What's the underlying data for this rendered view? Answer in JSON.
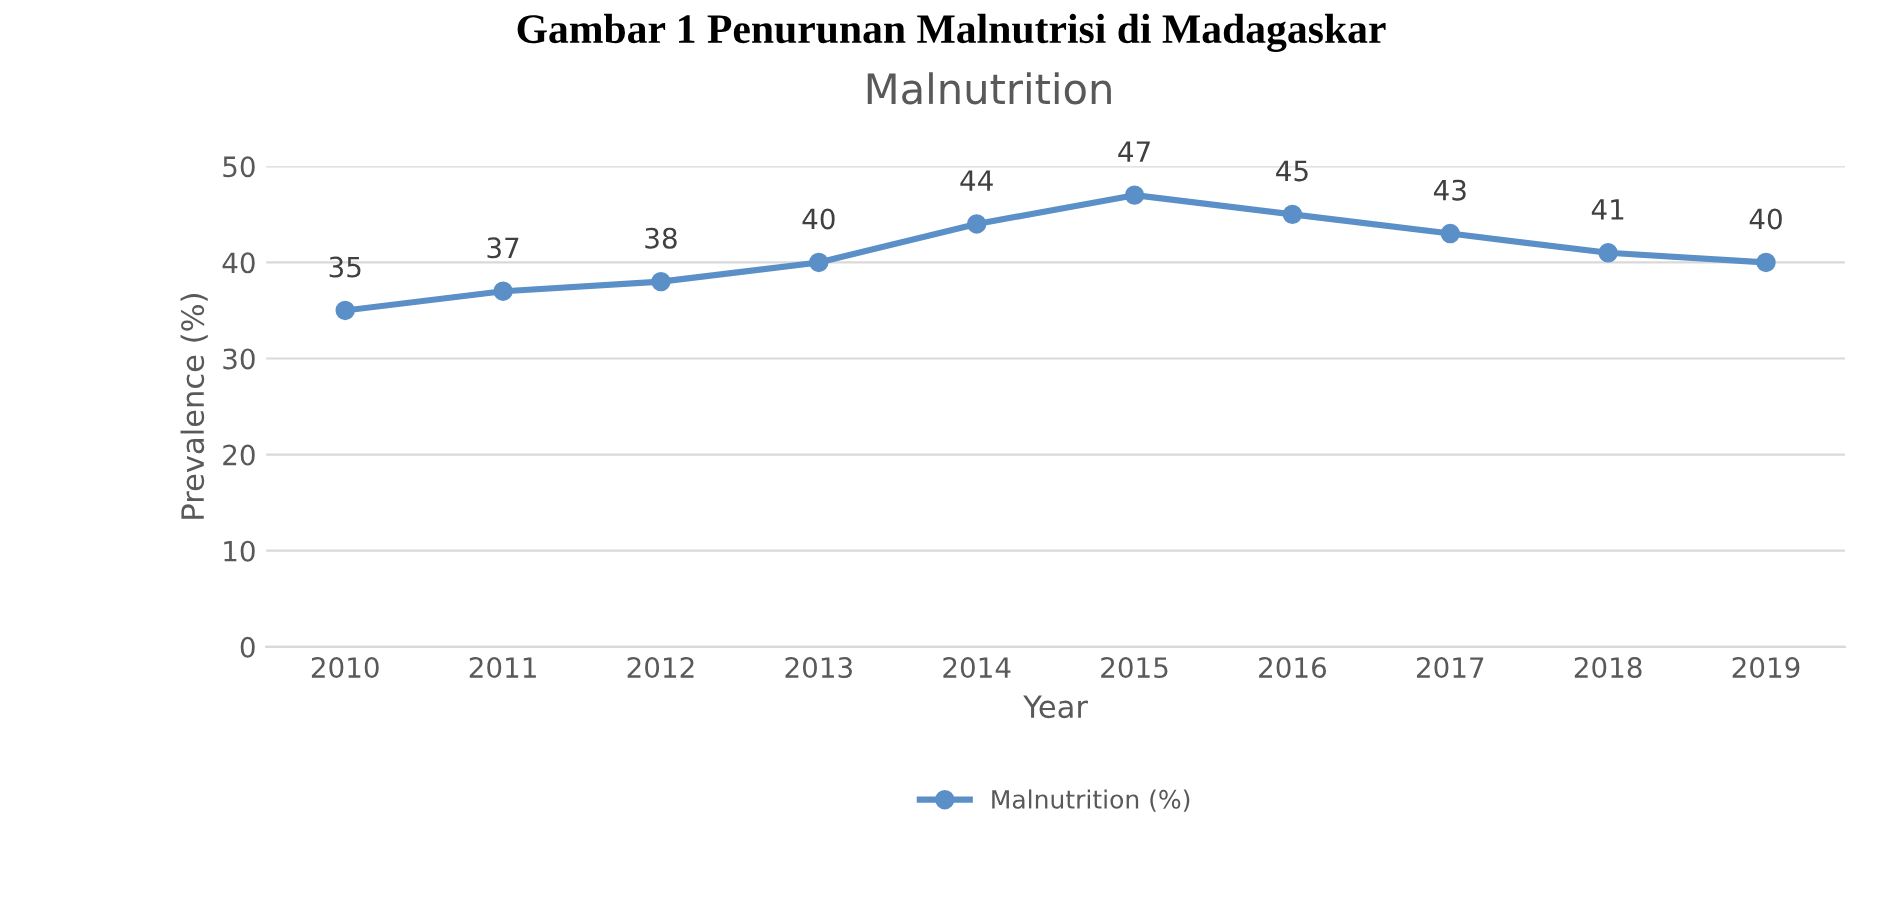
{
  "chart_data": {
    "type": "line",
    "title": "Malnutrition",
    "xlabel": "Year",
    "ylabel": "Prevalence (%)",
    "annotations": [
      "Gambar 1 Penurunan Malnutrisi di Madagaskar"
    ],
    "categories": [
      "2010",
      "2011",
      "2012",
      "2013",
      "2014",
      "2015",
      "2016",
      "2017",
      "2018",
      "2019"
    ],
    "series": [
      {
        "name": "Malnutrition (%)",
        "color": "#5b8fc7",
        "values": [
          35,
          37,
          38,
          40,
          44,
          47,
          45,
          43,
          41,
          40
        ]
      }
    ],
    "ylim": [
      0,
      50
    ],
    "yticks": [
      0,
      10,
      20,
      30,
      40,
      50
    ],
    "grid": "y",
    "legend": "bottom",
    "marker": "circle",
    "line_style": "solid",
    "data_labels": true
  }
}
